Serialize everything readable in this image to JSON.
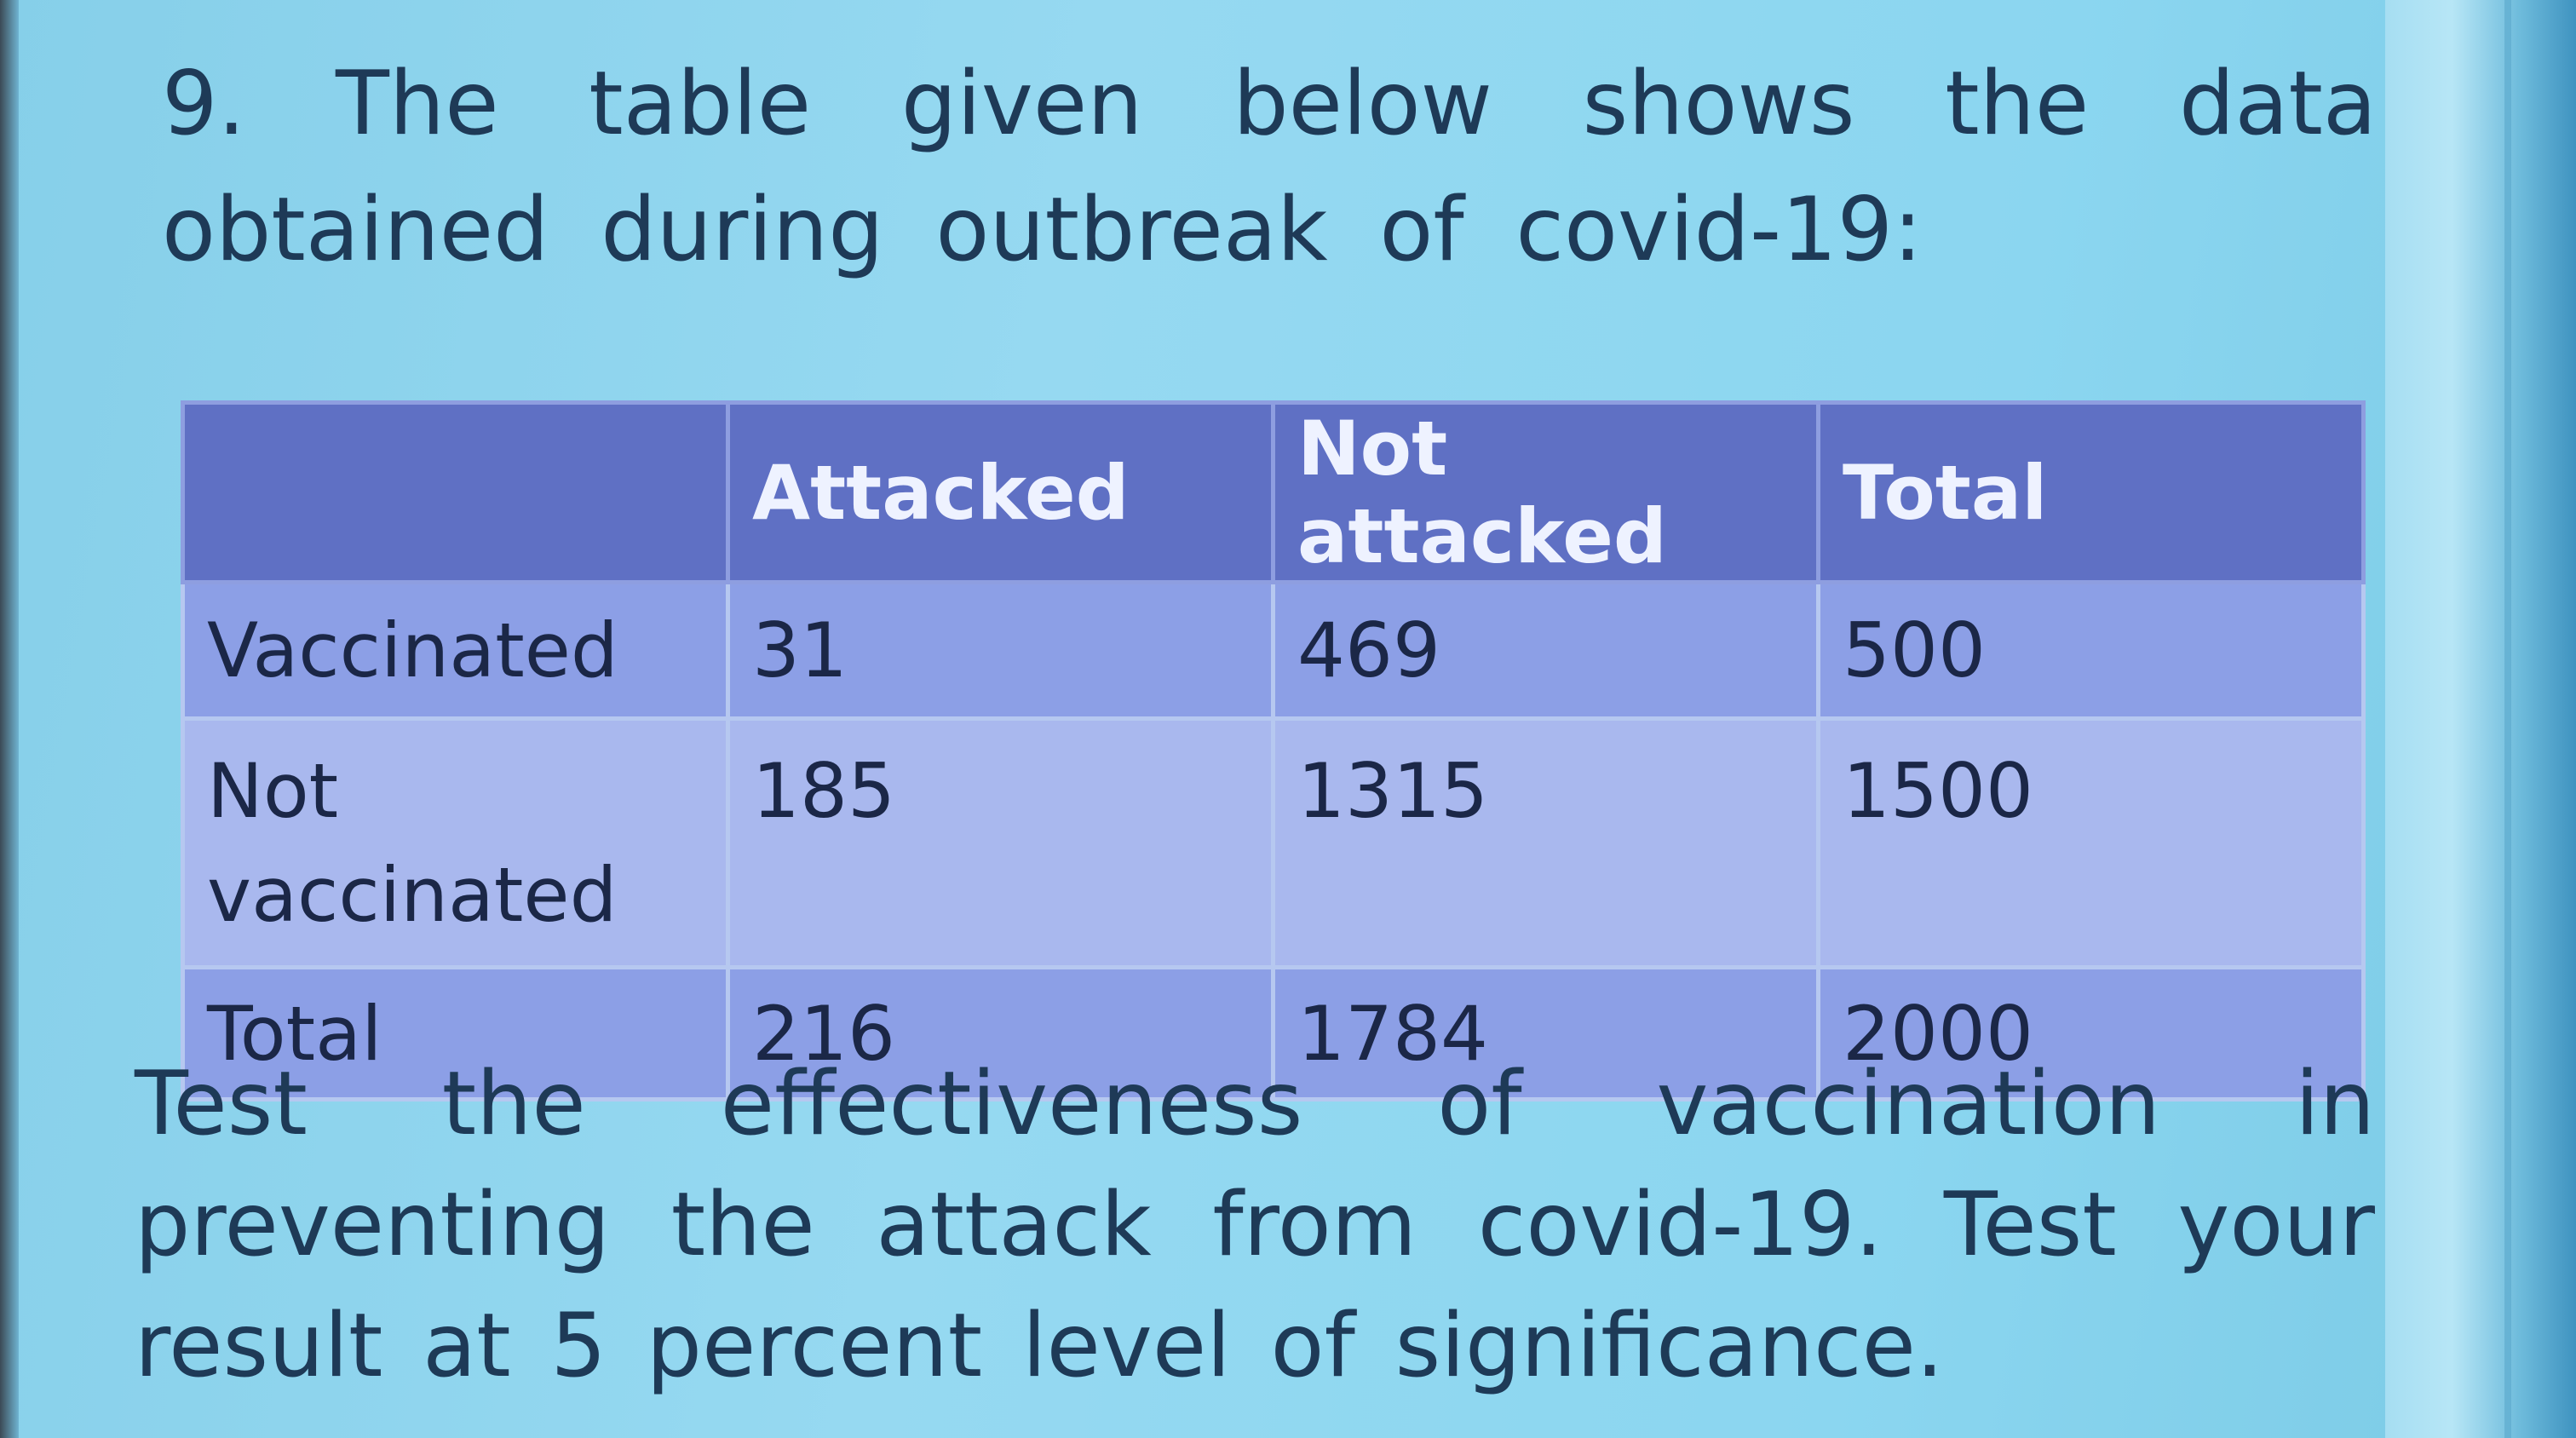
{
  "question": {
    "text": "9. The table given below shows the data obtained during outbreak of covid-19:"
  },
  "table": {
    "headers": [
      "",
      "Attacked",
      "Not attacked",
      "Total"
    ],
    "rows": [
      {
        "label": "Vaccinated",
        "attacked": "31",
        "not_attacked": "469",
        "total": "500"
      },
      {
        "label": "Not vaccinated",
        "attacked": "185",
        "not_attacked": "1315",
        "total": "1500"
      },
      {
        "label": "Total",
        "attacked": "216",
        "not_attacked": "1784",
        "total": "2000"
      }
    ]
  },
  "followup": {
    "text": "Test the effectiveness of vaccination in preventing the attack from covid-19. Test your result at 5 percent level of significance."
  },
  "colors": {
    "slide_background": "#96d9f1",
    "header_fill": "#5f70c4",
    "row_fill_dark": "#8c9fe6",
    "row_fill_light": "#a9b8ee",
    "text": "#1e3a57"
  }
}
